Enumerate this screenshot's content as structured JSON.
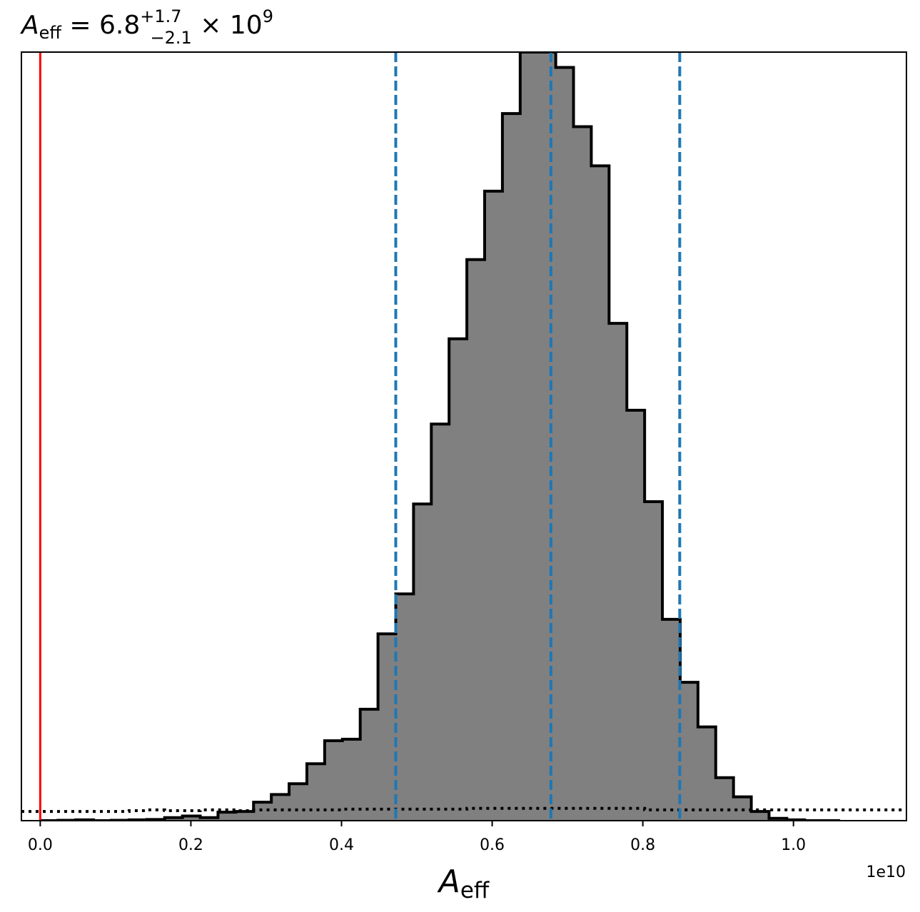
{
  "chart_data": {
    "type": "histogram",
    "title": {
      "symbol": "A",
      "symbol_sub": "eff",
      "eq": " = 6.8",
      "sup": "+1.7",
      "sub": "−2.1",
      "tail": " × 10",
      "tail_sup": "9"
    },
    "xlabel": {
      "symbol": "A",
      "sub": "eff"
    },
    "offset_label": "1e10",
    "xlim": [
      -0.025,
      1.15
    ],
    "ylim": [
      0,
      1.0
    ],
    "grid": false,
    "xticks": [
      0.0,
      0.2,
      0.4,
      0.6,
      0.8,
      1.0
    ],
    "xtick_labels": [
      "0.0",
      "0.2",
      "0.4",
      "0.6",
      "0.8",
      "1.0"
    ],
    "bin_edges": [
      0.0,
      0.0236,
      0.0472,
      0.0708,
      0.0944,
      0.118,
      0.1416,
      0.1652,
      0.1888,
      0.2124,
      0.236,
      0.2596,
      0.2832,
      0.3068,
      0.3304,
      0.354,
      0.3776,
      0.4012,
      0.4248,
      0.4484,
      0.472,
      0.4956,
      0.5192,
      0.5428,
      0.5664,
      0.59,
      0.6136,
      0.6372,
      0.6608,
      0.6844,
      0.708,
      0.7316,
      0.7552,
      0.7788,
      0.8024,
      0.826,
      0.8496,
      0.8732,
      0.8968,
      0.9204,
      0.944,
      0.9676,
      0.9912,
      1.0148,
      1.0384,
      1.062
    ],
    "counts": [
      0.0,
      0.0005,
      0.001,
      0.0,
      0.0005,
      0.001,
      0.0015,
      0.004,
      0.006,
      0.004,
      0.011,
      0.012,
      0.024,
      0.034,
      0.048,
      0.074,
      0.104,
      0.106,
      0.145,
      0.243,
      0.295,
      0.412,
      0.516,
      0.627,
      0.73,
      0.819,
      0.92,
      1.0,
      1.0,
      0.98,
      0.903,
      0.852,
      0.647,
      0.534,
      0.415,
      0.262,
      0.18,
      0.122,
      0.056,
      0.031,
      0.012,
      0.003,
      0.001,
      0.0,
      0.0
    ],
    "prior_density": [
      0.012,
      0.012,
      0.012,
      0.012,
      0.012,
      0.013,
      0.014,
      0.013,
      0.013,
      0.014,
      0.014,
      0.013,
      0.014,
      0.014,
      0.014,
      0.014,
      0.014,
      0.015,
      0.015,
      0.015,
      0.015,
      0.015,
      0.015,
      0.015,
      0.016,
      0.016,
      0.016,
      0.016,
      0.016,
      0.016,
      0.016,
      0.016,
      0.016,
      0.016,
      0.014,
      0.014,
      0.014,
      0.014,
      0.014,
      0.014,
      0.014,
      0.014,
      0.014,
      0.014,
      0.014
    ],
    "vlines": {
      "truth": {
        "x": 0.0,
        "color": "#ff0000",
        "style": "solid"
      },
      "quantiles": [
        {
          "x": 0.472,
          "color": "#1f77b4",
          "style": "dashed"
        },
        {
          "x": 0.678,
          "color": "#1f77b4",
          "style": "dashed"
        },
        {
          "x": 0.849,
          "color": "#1f77b4",
          "style": "dashed"
        }
      ]
    },
    "fill_color": "#808080",
    "edge_color": "#000000"
  }
}
